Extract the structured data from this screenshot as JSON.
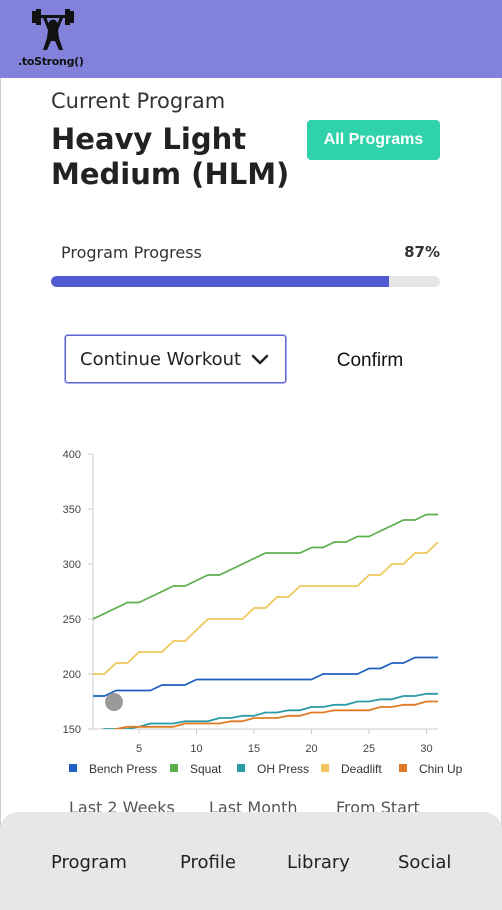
{
  "app": {
    "logo_text": ".toStrong()"
  },
  "header": {
    "label": "Current Program",
    "title": "Heavy Light Medium (HLM)",
    "all_programs_label": "All Programs"
  },
  "progress": {
    "label": "Program Progress",
    "value_text": "87%",
    "fraction": 0.87
  },
  "workout": {
    "selected": "Continue Workout",
    "confirm_label": "Confirm"
  },
  "chart_data": {
    "type": "line",
    "xlim": [
      1,
      31
    ],
    "ylim": [
      150,
      400
    ],
    "x_ticks": [
      5,
      10,
      15,
      20,
      25,
      30
    ],
    "y_ticks": [
      150,
      200,
      250,
      300,
      350,
      400
    ],
    "legend_position": "bottom",
    "series": [
      {
        "name": "Bench Press",
        "color": "#1f5fc2",
        "x": [
          1,
          2,
          3,
          4,
          5,
          6,
          7,
          8,
          9,
          10,
          11,
          12,
          13,
          14,
          15,
          16,
          17,
          18,
          19,
          20,
          21,
          22,
          23,
          24,
          25,
          26,
          27,
          28,
          29,
          30,
          31
        ],
        "values": [
          180,
          180,
          185,
          185,
          185,
          185,
          190,
          190,
          190,
          195,
          195,
          195,
          195,
          195,
          195,
          195,
          195,
          195,
          195,
          195,
          200,
          200,
          200,
          200,
          205,
          205,
          210,
          210,
          215,
          215,
          215
        ]
      },
      {
        "name": "Squat",
        "color": "#5caf4b",
        "x": [
          1,
          2,
          3,
          4,
          5,
          6,
          7,
          8,
          9,
          10,
          11,
          12,
          13,
          14,
          15,
          16,
          17,
          18,
          19,
          20,
          21,
          22,
          23,
          24,
          25,
          26,
          27,
          28,
          29,
          30,
          31
        ],
        "values": [
          250,
          255,
          260,
          265,
          265,
          270,
          275,
          280,
          280,
          285,
          290,
          290,
          295,
          300,
          305,
          310,
          310,
          310,
          310,
          315,
          315,
          320,
          320,
          325,
          325,
          330,
          335,
          340,
          340,
          345,
          345
        ]
      },
      {
        "name": "OH Press",
        "color": "#2a9aa5",
        "x": [
          1,
          2,
          3,
          4,
          5,
          6,
          7,
          8,
          9,
          10,
          11,
          12,
          13,
          14,
          15,
          16,
          17,
          18,
          19,
          20,
          21,
          22,
          23,
          24,
          25,
          26,
          27,
          28,
          29,
          30,
          31
        ],
        "values": [
          147,
          150,
          150,
          150,
          152,
          155,
          155,
          155,
          157,
          157,
          157,
          160,
          160,
          162,
          162,
          165,
          165,
          167,
          167,
          170,
          170,
          172,
          172,
          175,
          175,
          177,
          177,
          180,
          180,
          182,
          182
        ]
      },
      {
        "name": "Deadlift",
        "color": "#efc75b",
        "x": [
          1,
          2,
          3,
          4,
          5,
          6,
          7,
          8,
          9,
          10,
          11,
          12,
          13,
          14,
          15,
          16,
          17,
          18,
          19,
          20,
          21,
          22,
          23,
          24,
          25,
          26,
          27,
          28,
          29,
          30,
          31
        ],
        "values": [
          200,
          200,
          210,
          210,
          220,
          220,
          220,
          230,
          230,
          240,
          250,
          250,
          250,
          250,
          260,
          260,
          270,
          270,
          280,
          280,
          280,
          280,
          280,
          280,
          290,
          290,
          300,
          300,
          310,
          310,
          320
        ]
      },
      {
        "name": "Chin Up",
        "color": "#e07c24",
        "x": [
          1,
          2,
          3,
          4,
          5,
          6,
          7,
          8,
          9,
          10,
          11,
          12,
          13,
          14,
          15,
          16,
          17,
          18,
          19,
          20,
          21,
          22,
          23,
          24,
          25,
          26,
          27,
          28,
          29,
          30,
          31
        ],
        "values": [
          145,
          147,
          150,
          152,
          152,
          152,
          152,
          152,
          155,
          155,
          155,
          155,
          157,
          157,
          160,
          160,
          160,
          162,
          162,
          165,
          165,
          167,
          167,
          167,
          167,
          170,
          170,
          172,
          172,
          175,
          175
        ]
      }
    ]
  },
  "time_ranges": [
    "Last 2 Weeks",
    "Last Month",
    "From Start"
  ],
  "nav": {
    "items": [
      "Program",
      "Profile",
      "Library",
      "Social"
    ]
  }
}
